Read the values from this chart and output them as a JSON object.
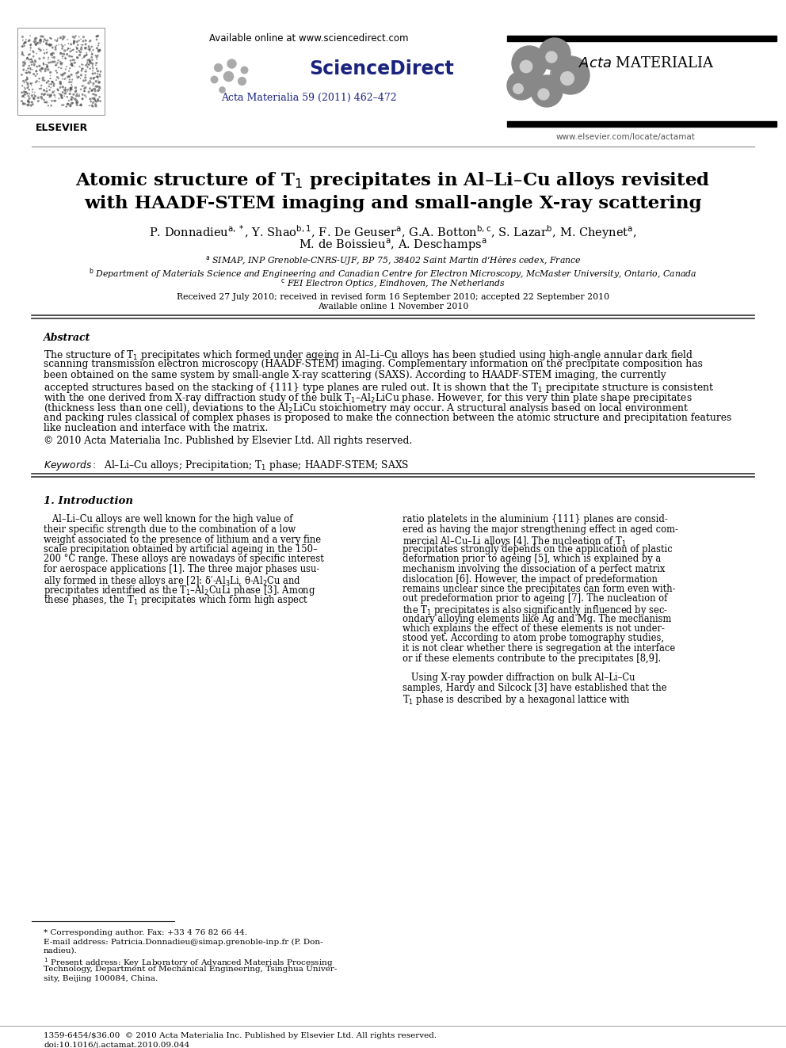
{
  "bg_color": "#ffffff",
  "available_online": "Available online at www.sciencedirect.com",
  "journal_ref": "Acta Materialia 59 (2011) 462–472",
  "elsevier_url": "www.elsevier.com/locate/actamat",
  "title_line1": "Atomic structure of T$_1$ precipitates in Al–Li–Cu alloys revisited",
  "title_line2": "with HAADF-STEM imaging and small-angle X-ray scattering",
  "author_line1": "P. Donnadieu$^{\\rm a,*}$, Y. Shao$^{\\rm b,1}$, F. De Geuser$^{\\rm a}$, G.A. Botton$^{\\rm b,c}$, S. Lazar$^{\\rm b}$, M. Cheynet$^{\\rm a}$,",
  "author_line2": "M. de Boissieu$^{\\rm a}$, A. Deschamps$^{\\rm a}$",
  "affil_a": "$^{\\rm a}$ SIMAP, INP Grenoble-CNRS-UJF, BP 75, 38402 Saint Martin d’Hères cedex, France",
  "affil_b": "$^{\\rm b}$ Department of Materials Science and Engineering and Canadian Centre for Electron Microscopy, McMaster University, Ontario, Canada",
  "affil_c": "$^{\\rm c}$ FEI Electron Optics, Eindhoven, The Netherlands",
  "received": "Received 27 July 2010; received in revised form 16 September 2010; accepted 22 September 2010",
  "available": "Available online 1 November 2010",
  "abstract_label": "Abstract",
  "abstract_lines": [
    "The structure of T$_1$ precipitates which formed under ageing in Al–Li–Cu alloys has been studied using high-angle annular dark field",
    "scanning transmission electron microscopy (HAADF-STEM) imaging. Complementary information on the precipitate composition has",
    "been obtained on the same system by small-angle X-ray scattering (SAXS). According to HAADF-STEM imaging, the currently",
    "accepted structures based on the stacking of {111} type planes are ruled out. It is shown that the T$_1$ precipitate structure is consistent",
    "with the one derived from X-ray diffraction study of the bulk T$_1$–Al$_2$LiCu phase. However, for this very thin plate shape precipitates",
    "(thickness less than one cell), deviations to the Al$_2$LiCu stoichiometry may occur. A structural analysis based on local environment",
    "and packing rules classical of complex phases is proposed to make the connection between the atomic structure and precipitation features",
    "like nucleation and interface with the matrix."
  ],
  "copyright": "© 2010 Acta Materialia Inc. Published by Elsevier Ltd. All rights reserved.",
  "keywords_line": "Al–Li–Cu alloys; Precipitation; T$_1$ phase; HAADF-STEM; SAXS",
  "section1_label": "1. Introduction",
  "col1_lines": [
    "   Al–Li–Cu alloys are well known for the high value of",
    "their specific strength due to the combination of a low",
    "weight associated to the presence of lithium and a very fine",
    "scale precipitation obtained by artificial ageing in the 150–",
    "200 °C range. These alloys are nowadays of specific interest",
    "for aerospace applications [1]. The three major phases usu-",
    "ally formed in these alloys are [2]: δ′-Al$_3$Li, θ-Al$_2$Cu and",
    "precipitates identified as the T$_1$–Al$_2$CuLi phase [3]. Among",
    "these phases, the T$_1$ precipitates which form high aspect"
  ],
  "col2_lines": [
    "ratio platelets in the aluminium {111} planes are consid-",
    "ered as having the major strengthening effect in aged com-",
    "mercial Al–Cu–Li alloys [4]. The nucleation of T$_1$",
    "precipitates strongly depends on the application of plastic",
    "deformation prior to ageing [5], which is explained by a",
    "mechanism involving the dissociation of a perfect matrix",
    "dislocation [6]. However, the impact of predeformation",
    "remains unclear since the precipitates can form even with-",
    "out predeformation prior to ageing [7]. The nucleation of",
    "the T$_1$ precipitates is also significantly influenced by sec-",
    "ondary alloying elements like Ag and Mg. The mechanism",
    "which explains the effect of these elements is not under-",
    "stood yet. According to atom probe tomography studies,",
    "it is not clear whether there is segregation at the interface",
    "or if these elements contribute to the precipitates [8,9].",
    "",
    "   Using X-ray powder diffraction on bulk Al–Li–Cu",
    "samples, Hardy and Silcock [3] have established that the",
    "T$_1$ phase is described by a hexagonal lattice with"
  ],
  "fn1": "* Corresponding author. Fax: +33 4 76 82 66 44.",
  "fn2": "E-mail address: Patricia.Donnadieu@simap.grenoble-inp.fr (P. Don-",
  "fn3": "nadieu).",
  "fn4": "$^1$ Present address: Key Laboratory of Advanced Materials Processing",
  "fn5": "Technology, Department of Mechanical Engineering, Tsinghua Univer-",
  "fn6": "sity, Beijing 100084, China.",
  "bottom_ref": "1359-6454/$36.00  © 2010 Acta Materialia Inc. Published by Elsevier Ltd. All rights reserved.",
  "bottom_doi": "doi:10.1016/j.actamat.2010.09.044",
  "journal_ref_color": "#1a237e",
  "sd_text_color": "#1a237e",
  "title_fontsize": 16.5,
  "author_fontsize": 10.5,
  "affil_fontsize": 7.8,
  "abstract_fontsize": 8.8,
  "body_fontsize": 8.3,
  "fn_fontsize": 7.5
}
